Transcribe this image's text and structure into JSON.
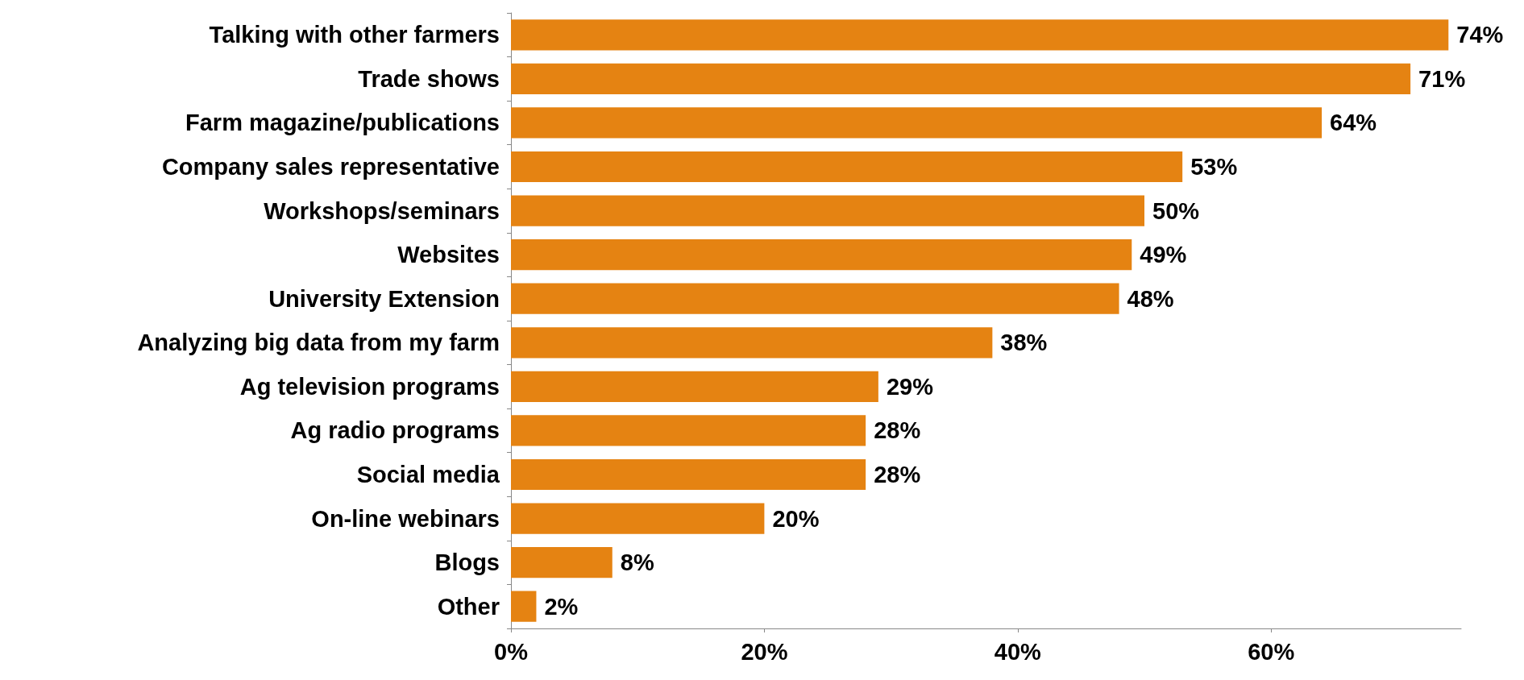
{
  "chart_data": {
    "type": "bar",
    "orientation": "horizontal",
    "categories": [
      "Talking with other farmers",
      "Trade shows",
      "Farm magazine/publications",
      "Company sales representative",
      "Workshops/seminars",
      "Websites",
      "University Extension",
      "Analyzing big data from my farm",
      "Ag television programs",
      "Ag radio programs",
      "Social media",
      "On-line webinars",
      "Blogs",
      "Other"
    ],
    "values": [
      74,
      71,
      64,
      53,
      50,
      49,
      48,
      38,
      29,
      28,
      28,
      20,
      8,
      2
    ],
    "value_labels": [
      "74%",
      "71%",
      "64%",
      "53%",
      "50%",
      "49%",
      "48%",
      "38%",
      "29%",
      "28%",
      "28%",
      "20%",
      "8%",
      "2%"
    ],
    "color": "#e58312",
    "xlim": [
      0,
      75
    ],
    "xticks": [
      {
        "value": 0,
        "label": "0%"
      },
      {
        "value": 20,
        "label": "20%"
      },
      {
        "value": 40,
        "label": "40%"
      },
      {
        "value": 60,
        "label": "60%"
      }
    ],
    "grid": false
  }
}
